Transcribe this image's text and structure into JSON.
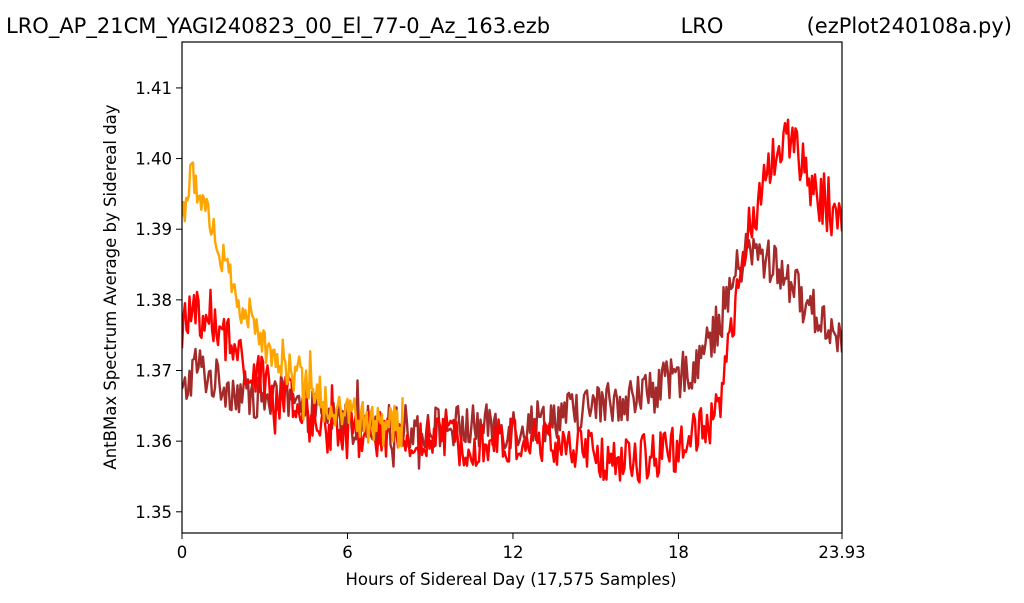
{
  "header": {
    "left": "LRO_AP_21CM_YAGI240823_00_El_77-0_Az_163.ezb",
    "center": "LRO",
    "right": "(ezPlot240108a.py)"
  },
  "chart_data": {
    "type": "line",
    "xlabel": "Hours of Sidereal Day  (17,575 Samples)",
    "ylabel": "AntBMax Spectrum Average by Sidereal day",
    "xlim": [
      0,
      23.93
    ],
    "ylim": [
      1.347,
      1.4165
    ],
    "xticks": [
      0,
      6,
      12,
      18,
      23.93
    ],
    "xtick_labels": [
      "0",
      "6",
      "12",
      "18",
      "23.93"
    ],
    "yticks": [
      1.35,
      1.36,
      1.37,
      1.38,
      1.39,
      1.4,
      1.41
    ],
    "ytick_labels": [
      "1.35",
      "1.36",
      "1.37",
      "1.38",
      "1.39",
      "1.40",
      "1.41"
    ],
    "grid": false,
    "colors": {
      "series_1": "#a52a2a",
      "series_2": "#ff0000",
      "series_3": "#ffa500"
    },
    "series": [
      {
        "color": "#a52a2a",
        "x": [
          0,
          0.5,
          1,
          2,
          3,
          4,
          5,
          6,
          7,
          8,
          9,
          10,
          11,
          12,
          13,
          14,
          15,
          16,
          17,
          18,
          19,
          19.5,
          20,
          20.5,
          21,
          21.5,
          22,
          22.5,
          23,
          23.5,
          23.93
        ],
        "y": [
          1.366,
          1.371,
          1.369,
          1.367,
          1.366,
          1.365,
          1.364,
          1.363,
          1.362,
          1.362,
          1.362,
          1.362,
          1.362,
          1.362,
          1.363,
          1.364,
          1.365,
          1.366,
          1.367,
          1.369,
          1.373,
          1.377,
          1.383,
          1.387,
          1.386,
          1.385,
          1.383,
          1.38,
          1.378,
          1.376,
          1.375
        ],
        "noise": 0.0032
      },
      {
        "color": "#ff0000",
        "x": [
          0,
          0.5,
          1,
          2,
          3,
          4,
          5,
          6,
          7,
          8,
          9,
          10,
          11,
          12,
          13,
          14,
          15,
          16,
          17,
          18,
          19,
          19.5,
          20,
          20.5,
          21,
          21.5,
          22,
          22.5,
          23,
          23.5,
          23.93
        ],
        "y": [
          1.376,
          1.378,
          1.377,
          1.372,
          1.368,
          1.365,
          1.362,
          1.361,
          1.361,
          1.36,
          1.36,
          1.36,
          1.36,
          1.36,
          1.36,
          1.359,
          1.358,
          1.357,
          1.358,
          1.359,
          1.362,
          1.365,
          1.377,
          1.389,
          1.395,
          1.401,
          1.403,
          1.399,
          1.395,
          1.392,
          1.392
        ],
        "noise": 0.0035
      },
      {
        "color": "#ffa500",
        "x": [
          0,
          0.3,
          0.6,
          1,
          1.5,
          2,
          3,
          4,
          5,
          6,
          7,
          8
        ],
        "y": [
          1.392,
          1.397,
          1.396,
          1.392,
          1.385,
          1.38,
          1.374,
          1.37,
          1.366,
          1.364,
          1.362,
          1.362
        ],
        "noise": 0.003
      }
    ]
  }
}
